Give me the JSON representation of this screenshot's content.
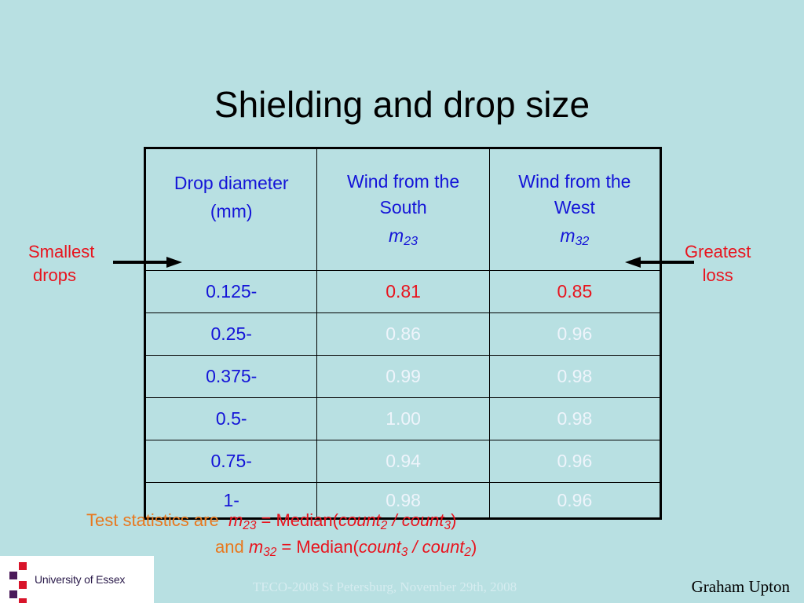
{
  "slide": {
    "title": "Shielding and drop size"
  },
  "table": {
    "header": {
      "col1": {
        "line1": "Drop diameter",
        "line2": "(mm)"
      },
      "col2": {
        "line1": "Wind from the",
        "line2": "South",
        "symbol": "m",
        "subscript": "23"
      },
      "col3": {
        "line1": "Wind from the",
        "line2": "West",
        "symbol": "m",
        "subscript": "32"
      }
    },
    "rows": [
      {
        "diameter": "0.125-",
        "south": "0.81",
        "west": "0.85"
      },
      {
        "diameter": "0.25-",
        "south": "0.86",
        "west": "0.96"
      },
      {
        "diameter": "0.375-",
        "south": "0.99",
        "west": "0.98"
      },
      {
        "diameter": "0.5-",
        "south": "1.00",
        "west": "0.98"
      },
      {
        "diameter": "0.75-",
        "south": "0.94",
        "west": "0.96"
      },
      {
        "diameter": "1-",
        "south": "0.98",
        "west": "0.96"
      }
    ]
  },
  "annotations": {
    "left": {
      "line1": "Smallest",
      "line2": "drops"
    },
    "right": {
      "line1": "Greatest",
      "line2": "loss"
    }
  },
  "formula": {
    "line1": {
      "prefix": "Test statistics are",
      "lhs": "m",
      "lhs_sub": "23",
      "eq": " = ",
      "fn": "Median(",
      "num": "count",
      "num_sub": "2",
      "slash": " / ",
      "den": "count",
      "den_sub": "3",
      "close": ")"
    },
    "line2": {
      "prefix": "and",
      "lhs": "m",
      "lhs_sub": "32",
      "eq": " = ",
      "fn": "Median(",
      "num": "count",
      "num_sub": "3",
      "slash": " / ",
      "den": "count",
      "den_sub": "2",
      "close": ")"
    }
  },
  "footer": {
    "logo_text": "University of Essex",
    "center": "TECO-2008 St Petersburg, November 29th, 2008",
    "author": "Graham Upton"
  },
  "colors": {
    "background": "#b8e0e2",
    "header_blue": "#1414d8",
    "highlight_red": "#e8141e",
    "orange": "#e8781e",
    "logo_purple": "#4b1a5a",
    "logo_red": "#d8142a"
  }
}
